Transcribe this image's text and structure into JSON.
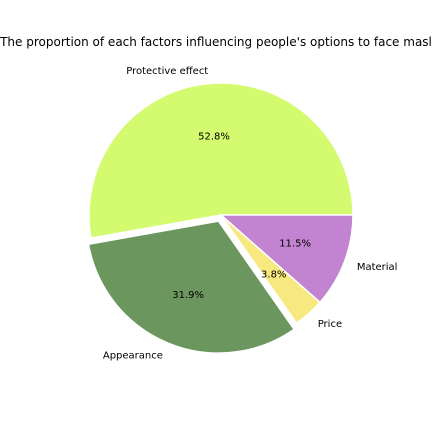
{
  "chart_data": {
    "type": "pie",
    "title": "The proportion of each factors influencing people's options to face masl",
    "slices": [
      {
        "label": "Protective effect",
        "percent": 52.8,
        "pct_label": "52.8%",
        "color": "#d4fa70",
        "explode": 0.0
      },
      {
        "label": "Appearance",
        "percent": 31.9,
        "pct_label": "31.9%",
        "color": "#6b975e",
        "explode": 0.05
      },
      {
        "label": "Price",
        "percent": 3.8,
        "pct_label": "3.8%",
        "color": "#f7e880",
        "explode": 0.0
      },
      {
        "label": "Material",
        "percent": 11.5,
        "pct_label": "11.5%",
        "color": "#c283d0",
        "explode": 0.0
      }
    ],
    "start_angle_deg": 0,
    "direction": "counterclockwise",
    "edge_color": "#ffffff",
    "legend": "none"
  }
}
